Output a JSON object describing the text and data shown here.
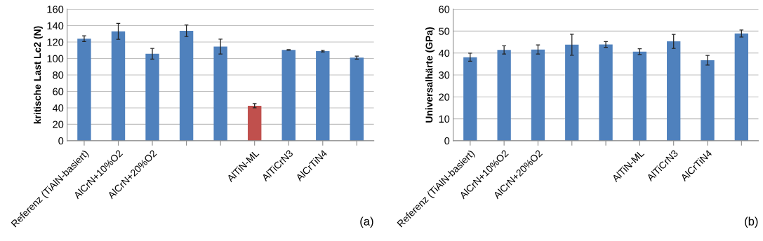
{
  "chart_data": [
    {
      "type": "bar",
      "ylabel": "kritische Last Lc2 (N)",
      "categories": [
        "Referenz (TiAlN-basiert)",
        "AlCrN+10%O2",
        "AlCrN+20%O2",
        null,
        null,
        "AlTiN-ML",
        "AlTiCrN3",
        "AlCrTiN4",
        null
      ],
      "values": [
        124,
        133,
        105.7,
        133.7,
        114.5,
        42.6,
        110.4,
        108.9,
        101
      ],
      "errors": [
        3.5,
        9.6,
        6.5,
        7,
        9,
        2.5,
        0.3,
        1,
        1.8
      ],
      "colors": [
        "#4f81bd",
        "#4f81bd",
        "#4f81bd",
        "#4f81bd",
        "#4f81bd",
        "#c0504d",
        "#4f81bd",
        "#4f81bd",
        "#4f81bd"
      ],
      "ylim": [
        0,
        160
      ],
      "yticks": [
        0,
        20,
        40,
        60,
        80,
        100,
        120,
        140,
        160
      ],
      "grid": "y",
      "annotations": [
        "(a)"
      ]
    },
    {
      "type": "bar",
      "ylabel": "Universalhärte (GPa)",
      "categories": [
        "Referenz (TiAlN-basiert)",
        "AlCrN+10%O2",
        "AlCrN+20%O2",
        null,
        null,
        "AlTiN-ML",
        "AlTiCrN3",
        "AlCrTiN4",
        null
      ],
      "values": [
        38.1,
        41.4,
        41.6,
        43.8,
        43.9,
        40.6,
        45.3,
        36.7,
        48.9
      ],
      "errors": [
        1.8,
        1.9,
        2.1,
        4.8,
        1.3,
        1.3,
        3.2,
        2.2,
        1.6
      ],
      "colors": [
        "#4f81bd",
        "#4f81bd",
        "#4f81bd",
        "#4f81bd",
        "#4f81bd",
        "#4f81bd",
        "#4f81bd",
        "#4f81bd",
        "#4f81bd"
      ],
      "ylim": [
        0,
        60
      ],
      "yticks": [
        0,
        10,
        20,
        30,
        40,
        50,
        60
      ],
      "grid": "y",
      "annotations": [
        "(b)"
      ]
    }
  ]
}
